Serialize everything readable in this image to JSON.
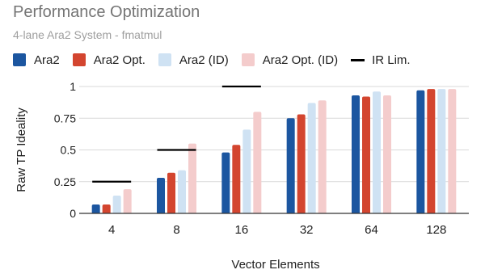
{
  "chart_data": {
    "type": "bar",
    "title": "Performance Optimization",
    "subtitle": "4-lane Ara2 System - fmatmul",
    "xlabel": "Vector Elements",
    "ylabel": "Raw TP Ideality",
    "categories": [
      "4",
      "8",
      "16",
      "32",
      "64",
      "128"
    ],
    "ylim": [
      0,
      1
    ],
    "yticks": [
      {
        "value": 0,
        "label": "0"
      },
      {
        "value": 0.25,
        "label": "0.25"
      },
      {
        "value": 0.5,
        "label": "0.5"
      },
      {
        "value": 0.75,
        "label": "0.75"
      },
      {
        "value": 1,
        "label": "1"
      }
    ],
    "grid": true,
    "legend_position": "top",
    "series": [
      {
        "name": "Ara2",
        "color": "#1c56a0",
        "values": [
          0.07,
          0.28,
          0.48,
          0.75,
          0.93,
          0.97
        ]
      },
      {
        "name": "Ara2 Opt.",
        "color": "#d3452f",
        "values": [
          0.07,
          0.32,
          0.54,
          0.78,
          0.92,
          0.98
        ]
      },
      {
        "name": "Ara2 (ID)",
        "color": "#cfe2f3",
        "values": [
          0.14,
          0.34,
          0.66,
          0.87,
          0.96,
          0.98
        ]
      },
      {
        "name": "Ara2 Opt. (ID)",
        "color": "#f4cccc",
        "values": [
          0.19,
          0.55,
          0.8,
          0.89,
          0.93,
          0.98
        ]
      }
    ],
    "limit_series": {
      "name": "IR Lim.",
      "color": "#000000",
      "values": [
        0.25,
        0.5,
        1.0,
        null,
        null,
        null
      ]
    }
  }
}
